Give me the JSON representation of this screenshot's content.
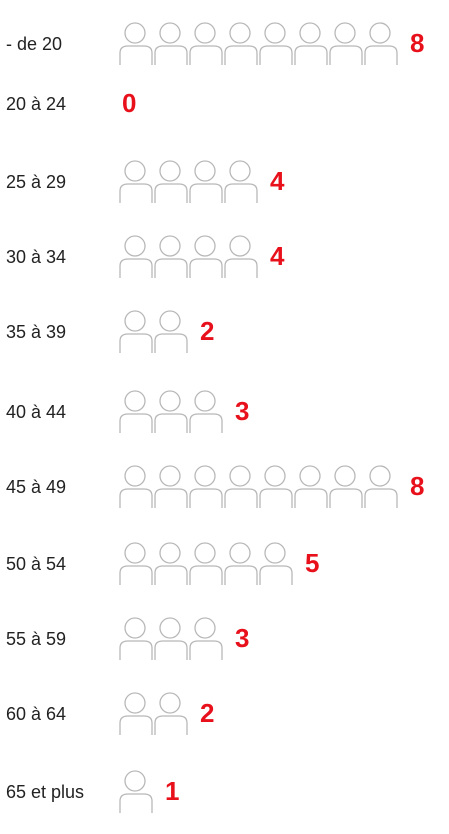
{
  "chart_data": {
    "type": "pictogram",
    "categories": [
      "- de 20",
      "20 à 24",
      "25 à 29",
      "30 à 34",
      "35 à 39",
      "40 à 44",
      "45 à 49",
      "50 à 54",
      "55 à 59",
      "60 à 64",
      "65 et plus"
    ],
    "values": [
      8,
      0,
      4,
      4,
      2,
      3,
      8,
      5,
      3,
      2,
      1
    ],
    "color": "#e8101a"
  }
}
